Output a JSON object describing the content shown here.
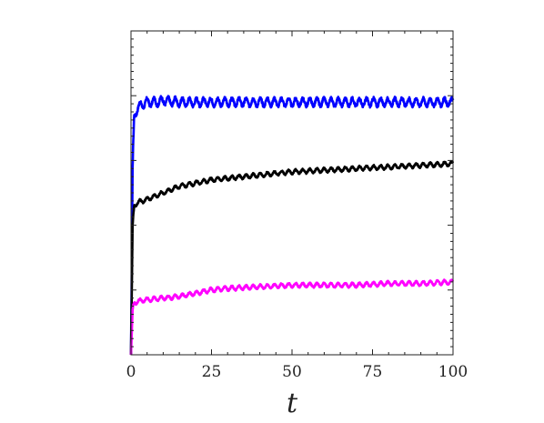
{
  "chart_data": {
    "type": "line",
    "title": "",
    "xlabel": "t",
    "ylabel": "",
    "xlim": [
      0,
      100
    ],
    "ylim": [
      0,
      1
    ],
    "x_ticks": [
      0,
      25,
      50,
      75,
      100
    ],
    "x_tick_labels": [
      "0",
      "25",
      "50",
      "75",
      "100"
    ],
    "y_ticks": [
      0,
      0.2,
      0.4,
      0.6,
      0.8,
      1.0
    ],
    "y_tick_labels_visible": false,
    "grid": false,
    "legend": "none",
    "series": [
      {
        "color": "#0000ff",
        "x": [
          0,
          0.5,
          1,
          2,
          3,
          4,
          5,
          8,
          10,
          15,
          20,
          30,
          40,
          50,
          60,
          70,
          80,
          90,
          100
        ],
        "y": [
          0.0,
          0.58,
          0.74,
          0.76,
          0.77,
          0.775,
          0.78,
          0.78,
          0.785,
          0.78,
          0.78,
          0.78,
          0.78,
          0.78,
          0.78,
          0.78,
          0.78,
          0.78,
          0.78
        ],
        "oscillation_amplitude": 0.012
      },
      {
        "color": "#000000",
        "x": [
          0,
          0.5,
          1,
          2,
          5,
          10,
          15,
          20,
          25,
          30,
          40,
          50,
          60,
          70,
          80,
          90,
          100
        ],
        "y": [
          0.0,
          0.4,
          0.46,
          0.47,
          0.48,
          0.5,
          0.52,
          0.53,
          0.54,
          0.545,
          0.555,
          0.565,
          0.57,
          0.575,
          0.58,
          0.585,
          0.59
        ],
        "oscillation_amplitude": 0.006
      },
      {
        "color": "#ff00ff",
        "x": [
          0,
          0.5,
          1,
          2,
          5,
          10,
          15,
          20,
          25,
          30,
          40,
          50,
          60,
          70,
          80,
          90,
          100
        ],
        "y": [
          0.0,
          0.14,
          0.16,
          0.165,
          0.17,
          0.175,
          0.18,
          0.19,
          0.2,
          0.205,
          0.21,
          0.215,
          0.215,
          0.215,
          0.22,
          0.22,
          0.225
        ],
        "oscillation_amplitude": 0.006
      }
    ]
  }
}
